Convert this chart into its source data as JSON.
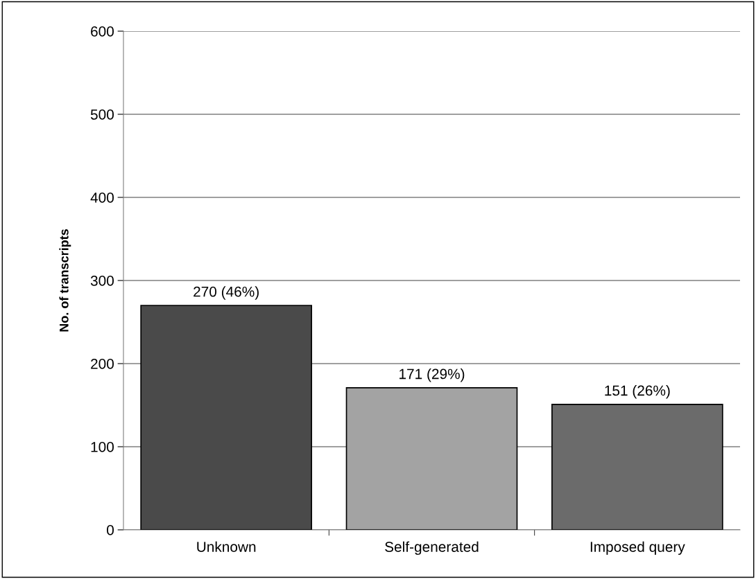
{
  "chart_data": {
    "type": "bar",
    "ylabel": "No. of transcripts",
    "categories": [
      "Unknown",
      "Self-generated",
      "Imposed query"
    ],
    "values": [
      270,
      171,
      151
    ],
    "colors": [
      "#4a4a4a",
      "#a3a3a3",
      "#6b6b6b"
    ],
    "value_labels": [
      "270 (46%)",
      "171 (29%)",
      "151 (26%)"
    ],
    "ylim": [
      0,
      600
    ],
    "yticks": [
      0,
      100,
      200,
      300,
      400,
      500,
      600
    ],
    "grid": "y",
    "legend": false
  }
}
